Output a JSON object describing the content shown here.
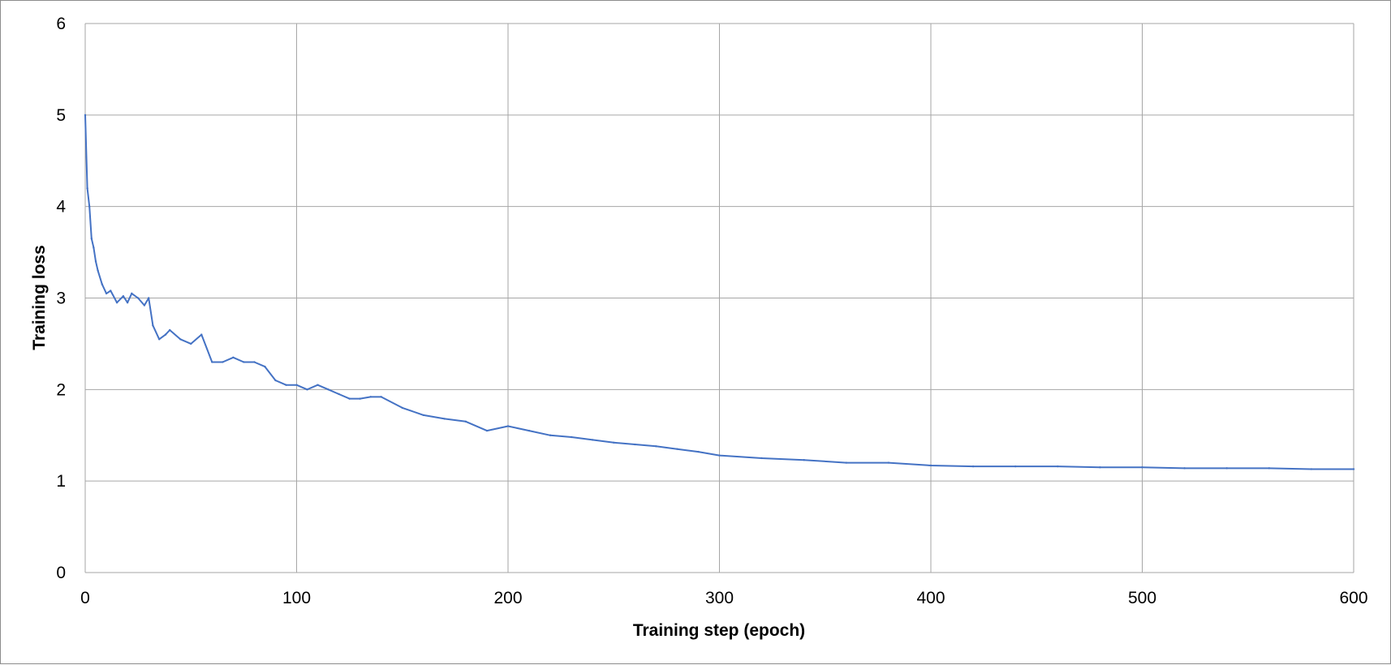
{
  "chart_data": {
    "type": "line",
    "title": "",
    "xlabel": "Training step (epoch)",
    "ylabel": "Training loss",
    "xlim": [
      0,
      600
    ],
    "ylim": [
      0,
      6
    ],
    "x_ticks": [
      "0",
      "100",
      "200",
      "300",
      "400",
      "500",
      "600"
    ],
    "y_ticks": [
      "0",
      "1",
      "2",
      "3",
      "4",
      "5",
      "6"
    ],
    "grid": true,
    "legend": "none",
    "line_color": "#4472c4",
    "grid_color": "#a6a6a6",
    "series": [
      {
        "x": [
          0,
          1,
          2,
          3,
          4,
          5,
          6,
          8,
          10,
          12,
          15,
          18,
          20,
          22,
          25,
          28,
          30,
          32,
          35,
          38,
          40,
          45,
          50,
          55,
          60,
          65,
          70,
          75,
          80,
          85,
          90,
          95,
          100,
          105,
          110,
          115,
          120,
          125,
          130,
          135,
          140,
          150,
          160,
          170,
          180,
          190,
          200,
          210,
          220,
          230,
          240,
          250,
          260,
          270,
          280,
          290,
          300,
          320,
          340,
          360,
          380,
          400,
          420,
          440,
          460,
          480,
          500,
          520,
          540,
          560,
          580,
          600
        ],
        "y": [
          5.0,
          4.2,
          4.0,
          3.65,
          3.55,
          3.4,
          3.3,
          3.15,
          3.05,
          3.08,
          2.95,
          3.02,
          2.95,
          3.05,
          3.0,
          2.92,
          3.0,
          2.7,
          2.55,
          2.6,
          2.65,
          2.55,
          2.5,
          2.6,
          2.3,
          2.3,
          2.35,
          2.3,
          2.3,
          2.25,
          2.1,
          2.05,
          2.05,
          2.0,
          2.05,
          2.0,
          1.95,
          1.9,
          1.9,
          1.92,
          1.92,
          1.8,
          1.72,
          1.68,
          1.65,
          1.55,
          1.6,
          1.55,
          1.5,
          1.48,
          1.45,
          1.42,
          1.4,
          1.38,
          1.35,
          1.32,
          1.28,
          1.25,
          1.23,
          1.2,
          1.2,
          1.17,
          1.16,
          1.16,
          1.16,
          1.15,
          1.15,
          1.14,
          1.14,
          1.14,
          1.13,
          1.13
        ]
      }
    ]
  }
}
